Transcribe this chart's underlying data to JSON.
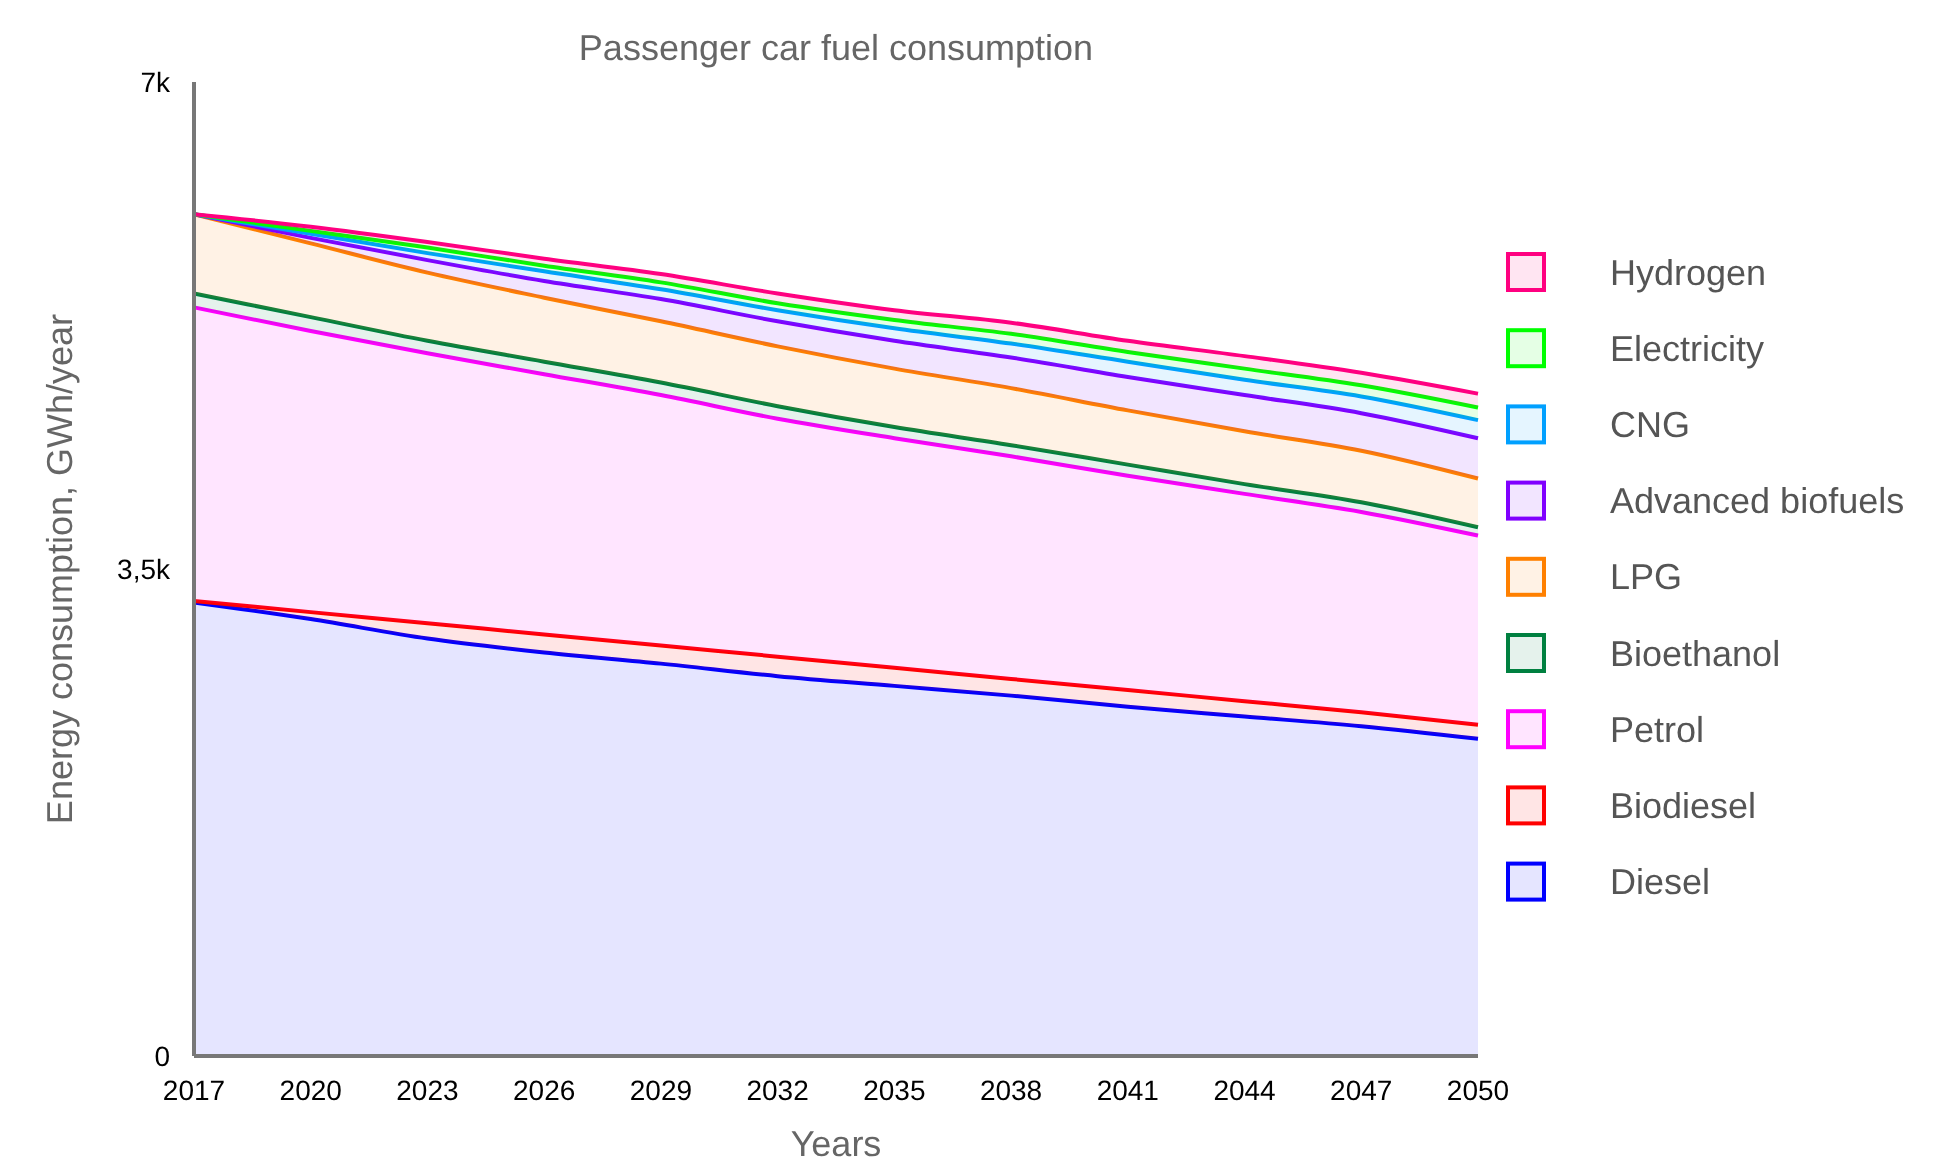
{
  "chart_data": {
    "type": "area",
    "stacked": true,
    "title": "Passenger car fuel consumption",
    "xlabel": "Years",
    "ylabel": "Energy consumption, GWh/year",
    "x": [
      2017,
      2020,
      2023,
      2026,
      2029,
      2032,
      2035,
      2038,
      2041,
      2044,
      2047,
      2050
    ],
    "xlim": [
      2017,
      2050
    ],
    "xticks": [
      2017,
      2020,
      2023,
      2026,
      2029,
      2032,
      2035,
      2038,
      2041,
      2044,
      2047,
      2050
    ],
    "ylim": [
      0,
      7000
    ],
    "yticks": [
      {
        "value": 0,
        "label": "0"
      },
      {
        "value": 3500,
        "label": "3,5k"
      },
      {
        "value": 7000,
        "label": "7k"
      }
    ],
    "grid": false,
    "legend": "right",
    "series": [
      {
        "name": "Diesel",
        "color": "#0000ff",
        "values": [
          3260,
          3140,
          3000,
          2900,
          2820,
          2730,
          2660,
          2590,
          2510,
          2440,
          2370,
          2280
        ]
      },
      {
        "name": "Biodiesel",
        "color": "#ff0000",
        "values": [
          10,
          50,
          110,
          130,
          130,
          140,
          130,
          120,
          120,
          110,
          100,
          100
        ]
      },
      {
        "name": "Petrol",
        "color": "#ff00ff",
        "values": [
          2110,
          2020,
          1940,
          1870,
          1800,
          1710,
          1650,
          1600,
          1540,
          1490,
          1440,
          1360
        ]
      },
      {
        "name": "Bioethanol",
        "color": "#008040",
        "values": [
          100,
          100,
          90,
          90,
          90,
          90,
          80,
          80,
          80,
          70,
          70,
          60
        ]
      },
      {
        "name": "LPG",
        "color": "#ff8000",
        "values": [
          570,
          530,
          490,
          460,
          440,
          430,
          420,
          410,
          390,
          380,
          370,
          350
        ]
      },
      {
        "name": "Advanced biofuels",
        "color": "#8000ff",
        "values": [
          0,
          40,
          90,
          120,
          160,
          180,
          200,
          220,
          240,
          260,
          270,
          290
        ]
      },
      {
        "name": "CNG",
        "color": "#00a0ff",
        "values": [
          0,
          30,
          50,
          70,
          70,
          80,
          90,
          100,
          110,
          110,
          120,
          130
        ]
      },
      {
        "name": "Electricity",
        "color": "#00ff00",
        "values": [
          0,
          20,
          40,
          40,
          50,
          50,
          60,
          70,
          70,
          80,
          80,
          90
        ]
      },
      {
        "name": "Hydrogen",
        "color": "#ff0080",
        "values": [
          0,
          30,
          40,
          50,
          60,
          70,
          70,
          80,
          80,
          90,
          90,
          100
        ]
      }
    ]
  }
}
